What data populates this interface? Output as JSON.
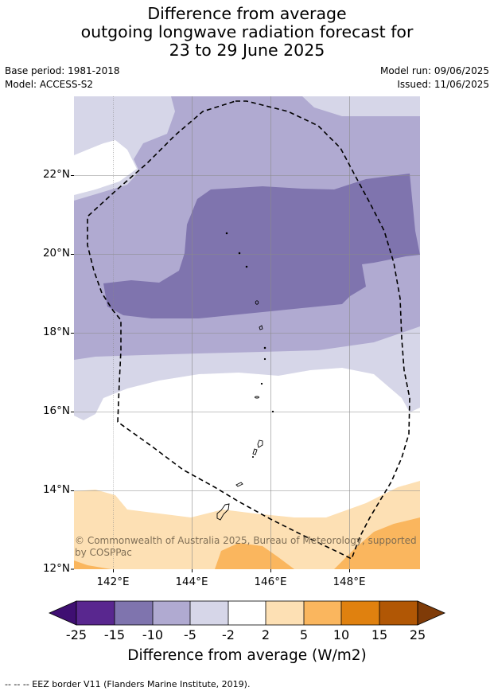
{
  "title": {
    "line1": "Difference from average",
    "line2": "outgoing longwave radiation forecast for",
    "line3": "23 to 29 June 2025"
  },
  "meta": {
    "base_period": "Base period: 1981-2018",
    "model": "Model: ACCESS-S2",
    "model_run": "Model run: 09/06/2025",
    "issued": "Issued: 11/06/2025"
  },
  "map": {
    "lat_labels": [
      "22°N",
      "20°N",
      "18°N",
      "16°N",
      "14°N",
      "12°N"
    ],
    "lon_labels": [
      "142°E",
      "144°E",
      "146°E",
      "148°E"
    ],
    "copyright": "© Commonwealth of Australia 2025, Bureau of Meteorology, supported by COSPPac",
    "colors": {
      "neg_2_5": "#d6d6e8",
      "neg_5_10": "#b0aad1",
      "neg_10_15": "#7f74ae",
      "pos_2_5": "#fde0b4",
      "pos_5_10": "#fab65e",
      "eez_border": "#000000"
    }
  },
  "colorbar": {
    "ticks": [
      "-25",
      "-15",
      "-10",
      "-5",
      "-2",
      "2",
      "5",
      "10",
      "15",
      "25"
    ],
    "colors": [
      "#3f0f72",
      "#59278f",
      "#7f74ae",
      "#b0aad1",
      "#d6d6e8",
      "#ffffff",
      "#fde0b4",
      "#fab65e",
      "#e0810f",
      "#b15705",
      "#7f3b08"
    ],
    "label": "Difference from average (W/m2)"
  },
  "footnote": "--  --  -- EEZ border V11 (Flanders Marine Institute, 2019)."
}
